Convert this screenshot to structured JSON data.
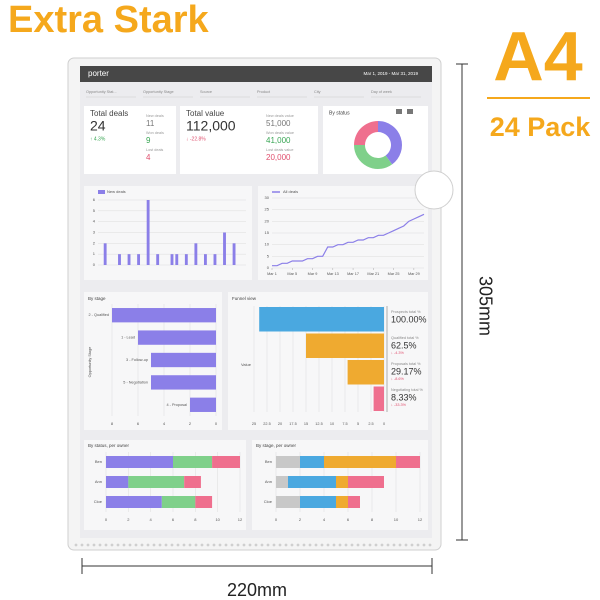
{
  "product": {
    "title": "Extra Stark",
    "size": "A4",
    "pack": "24 Pack",
    "height": "305mm",
    "width": "220mm"
  },
  "dashboard": {
    "brand": "porter",
    "date_range": "Mar 1, 2019 - Mar 31, 2019",
    "filters": [
      "Opportunity Stat...",
      "Opportunity Stage",
      "Source",
      "Product",
      "City",
      "Day of week"
    ],
    "kpis": [
      {
        "title": "Total deals",
        "value": "24",
        "change": "↑ 4.3%",
        "change_color": "#3aa655",
        "sub": [
          {
            "label": "New deals",
            "value": "11",
            "color": "#777777"
          },
          {
            "label": "Won deals",
            "value": "9",
            "color": "#3aa655"
          },
          {
            "label": "Lost deals",
            "value": "4",
            "color": "#e0506e"
          }
        ]
      },
      {
        "title": "Total value",
        "value": "112,000",
        "change": "↓ -22.8%",
        "change_color": "#e0506e",
        "sub": [
          {
            "label": "New deals value",
            "value": "51,000",
            "color": "#777777"
          },
          {
            "label": "Won deals value",
            "value": "41,000",
            "color": "#3aa655"
          },
          {
            "label": "Lost deals value",
            "value": "20,000",
            "color": "#e0506e"
          }
        ]
      }
    ],
    "charts": {
      "by_status": {
        "type": "pie",
        "title": "By status",
        "values": [
          40,
          35,
          25
        ],
        "colors": [
          "#8b7fe8",
          "#7fd08a",
          "#ef6f8e"
        ]
      },
      "new_deals": {
        "type": "bar",
        "legend": "New deals",
        "color": "#8b7fe8",
        "values": [
          0,
          2,
          0,
          0,
          1,
          0,
          1,
          0,
          1,
          0,
          6,
          0,
          1,
          0,
          0,
          1,
          1,
          0,
          1,
          0,
          2,
          0,
          1,
          0,
          1,
          0,
          3,
          0,
          2,
          0,
          0
        ],
        "ylim": [
          0,
          6
        ],
        "yticks": [
          0,
          1,
          2,
          3,
          4,
          5,
          6
        ]
      },
      "all_deals": {
        "type": "line",
        "legend": "All deals",
        "color": "#8b7fe8",
        "x": [
          1,
          2,
          3,
          4,
          5,
          6,
          7,
          8,
          9,
          10,
          11,
          12,
          13,
          14,
          15,
          16,
          17,
          18,
          19,
          20,
          21,
          22,
          23,
          24,
          25,
          26,
          27,
          28,
          29,
          30,
          31
        ],
        "values": [
          1,
          1,
          2,
          2,
          3,
          3,
          3,
          4,
          4,
          5,
          5,
          9,
          9,
          10,
          10,
          11,
          11,
          12,
          12,
          13,
          13,
          14,
          14,
          15,
          16,
          17,
          18,
          20,
          21,
          22,
          23
        ],
        "xlim": [
          1,
          31
        ],
        "xticks": [
          {
            "value": 1,
            "label": "Mar 1"
          },
          {
            "value": 5,
            "label": "Mar 5"
          },
          {
            "value": 9,
            "label": "Mar 9"
          },
          {
            "value": 13,
            "label": "Mar 13"
          },
          {
            "value": 17,
            "label": "Mar 17"
          },
          {
            "value": 21,
            "label": "Mar 21"
          },
          {
            "value": 25,
            "label": "Mar 25"
          },
          {
            "value": 29,
            "label": "Mar 29"
          }
        ],
        "ylim": [
          0,
          30
        ],
        "yticks": [
          0,
          5,
          10,
          15,
          20,
          25,
          30
        ]
      },
      "by_stage": {
        "type": "hbar",
        "title": "By stage",
        "axis_label": "Opportunity Stage",
        "categories": [
          "2 - Qualified",
          "1 - Lead",
          "3 - Follow-up",
          "5 - Negotiation",
          "4 - Proposal"
        ],
        "values": [
          8,
          6,
          5,
          5,
          2
        ],
        "color": "#8b7fe8",
        "xlim": [
          8,
          0
        ],
        "xticks": [
          8,
          6,
          4,
          2,
          0
        ]
      },
      "funnel": {
        "type": "funnel",
        "title": "Funnel view",
        "axis_label": "Value",
        "values": [
          24,
          15,
          7,
          2
        ],
        "colors": [
          "#4aa8e0",
          "#efaa30",
          "#efaa30",
          "#ef6f8e"
        ],
        "xlim": [
          25,
          0
        ],
        "xticks": [
          25,
          22.5,
          20,
          17.5,
          15,
          12.5,
          10,
          7.5,
          5,
          2.5,
          0
        ],
        "kpis": [
          {
            "label": "Prospects total %",
            "value": "100.00%"
          },
          {
            "label": "Qualified total %",
            "value": "62.5%",
            "change": "↓ -4.3%"
          },
          {
            "label": "Proposals total %",
            "value": "29.17%",
            "change": "↓ -8.6%"
          },
          {
            "label": "Negotiating total %",
            "value": "8.33%",
            "change": "↓ -33.3%"
          }
        ]
      },
      "status_owner": {
        "type": "stacked_hbar",
        "title": "By status, per owner",
        "categories": [
          "Ben",
          "Ann",
          "Cloe"
        ],
        "series": [
          {
            "color": "#8b7fe8",
            "values": [
              6,
              2,
              5
            ]
          },
          {
            "color": "#7fd08a",
            "values": [
              3.5,
              5,
              3
            ]
          },
          {
            "color": "#ef6f8e",
            "values": [
              2.5,
              1.5,
              1.5
            ]
          }
        ],
        "xlim": [
          0,
          12
        ],
        "xticks": [
          0,
          2,
          4,
          6,
          8,
          10,
          12
        ]
      },
      "stage_owner": {
        "type": "stacked_hbar",
        "title": "By stage, per owner",
        "categories": [
          "Ben",
          "Ann",
          "Cloe"
        ],
        "series": [
          {
            "color": "#c8c8c8",
            "values": [
              2,
              1,
              2
            ]
          },
          {
            "color": "#4aa8e0",
            "values": [
              2,
              4,
              3
            ]
          },
          {
            "color": "#efaa30",
            "values": [
              6,
              1,
              1
            ]
          },
          {
            "color": "#ef6f8e",
            "values": [
              2,
              3,
              1
            ]
          }
        ],
        "xlim": [
          0,
          12
        ],
        "xticks": [
          0,
          2,
          4,
          6,
          8,
          10,
          12
        ]
      }
    }
  }
}
